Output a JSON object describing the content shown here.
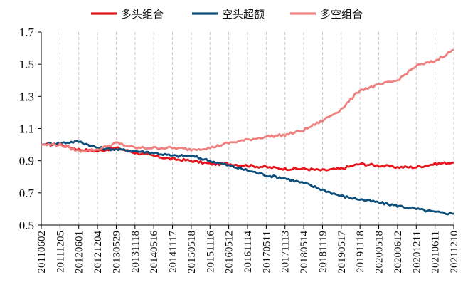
{
  "chart_data": {
    "type": "line",
    "title": "",
    "xlabel": "",
    "ylabel": "",
    "ylim": [
      0.5,
      1.7
    ],
    "yticks": [
      "0.5",
      "0.7",
      "0.9",
      "1.1",
      "1.3",
      "1.5",
      "1.7"
    ],
    "grid": "x-vertical-dashed",
    "legend_position": "top",
    "x_tick_labels": [
      "20110602",
      "20111205",
      "20120601",
      "20121204",
      "20130529",
      "20131118",
      "20140516",
      "20141117",
      "20150518",
      "20151116",
      "20160512",
      "20161114",
      "20170511",
      "20171113",
      "20180514",
      "20181119",
      "20190517",
      "20191118",
      "20200518",
      "20200612",
      "20201211",
      "20210611",
      "20211210"
    ],
    "series": [
      {
        "name": "多头组合",
        "color": "#e8141c",
        "values": [
          1.0,
          1.0,
          0.97,
          0.96,
          0.98,
          0.95,
          0.93,
          0.91,
          0.9,
          0.88,
          0.88,
          0.87,
          0.86,
          0.85,
          0.85,
          0.84,
          0.85,
          0.88,
          0.87,
          0.86,
          0.86,
          0.88,
          0.89
        ]
      },
      {
        "name": "空头超额",
        "color": "#0d4f7a",
        "values": [
          1.0,
          1.01,
          1.02,
          0.98,
          0.97,
          0.96,
          0.95,
          0.93,
          0.93,
          0.9,
          0.87,
          0.84,
          0.81,
          0.79,
          0.76,
          0.72,
          0.68,
          0.66,
          0.64,
          0.62,
          0.6,
          0.58,
          0.57
        ]
      },
      {
        "name": "多空组合",
        "color": "#f08080",
        "values": [
          1.0,
          1.0,
          0.96,
          0.97,
          1.01,
          0.98,
          0.98,
          0.98,
          0.97,
          0.98,
          1.01,
          1.03,
          1.05,
          1.06,
          1.09,
          1.15,
          1.22,
          1.34,
          1.37,
          1.4,
          1.49,
          1.52,
          1.59
        ]
      }
    ]
  }
}
